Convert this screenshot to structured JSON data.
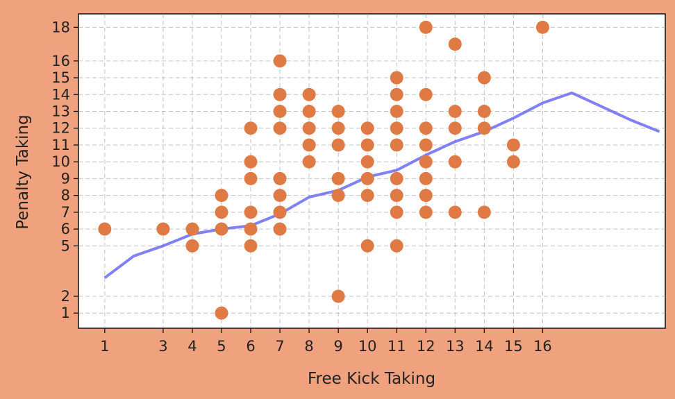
{
  "chart_data": {
    "type": "scatter",
    "title": "",
    "xlabel": "Free Kick Taking",
    "ylabel": "Penalty Taking",
    "xlim": [
      0.1,
      20.2
    ],
    "ylim": [
      0.1,
      18.8
    ],
    "x_ticks": [
      1,
      3,
      4,
      5,
      6,
      7,
      8,
      9,
      10,
      11,
      12,
      13,
      14,
      15,
      16
    ],
    "y_ticks": [
      1,
      2,
      5,
      6,
      7,
      8,
      9,
      10,
      11,
      12,
      13,
      14,
      15,
      16,
      18
    ],
    "grid": true,
    "colors": {
      "background": "#f0a27e",
      "plot_area": "#ffffff",
      "points": "#e07a45",
      "trend_line": "#6b6bf5"
    },
    "series": [
      {
        "type": "scatter",
        "points": [
          [
            1,
            6
          ],
          [
            3,
            6
          ],
          [
            4,
            6
          ],
          [
            4,
            5
          ],
          [
            5,
            8
          ],
          [
            5,
            7
          ],
          [
            5,
            6
          ],
          [
            5,
            1
          ],
          [
            6,
            12
          ],
          [
            6,
            10
          ],
          [
            6,
            9
          ],
          [
            6,
            7
          ],
          [
            6,
            6
          ],
          [
            6,
            5
          ],
          [
            7,
            16
          ],
          [
            7,
            14
          ],
          [
            7,
            13
          ],
          [
            7,
            12
          ],
          [
            7,
            9
          ],
          [
            7,
            8
          ],
          [
            7,
            7
          ],
          [
            7,
            6
          ],
          [
            8,
            14
          ],
          [
            8,
            13
          ],
          [
            8,
            12
          ],
          [
            8,
            11
          ],
          [
            8,
            10
          ],
          [
            9,
            13
          ],
          [
            9,
            12
          ],
          [
            9,
            11
          ],
          [
            9,
            9
          ],
          [
            9,
            8
          ],
          [
            9,
            2
          ],
          [
            10,
            12
          ],
          [
            10,
            11
          ],
          [
            10,
            10
          ],
          [
            10,
            9
          ],
          [
            10,
            8
          ],
          [
            10,
            5
          ],
          [
            11,
            15
          ],
          [
            11,
            14
          ],
          [
            11,
            13
          ],
          [
            11,
            12
          ],
          [
            11,
            11
          ],
          [
            11,
            9
          ],
          [
            11,
            8
          ],
          [
            11,
            7
          ],
          [
            11,
            5
          ],
          [
            12,
            18
          ],
          [
            12,
            14
          ],
          [
            12,
            12
          ],
          [
            12,
            11
          ],
          [
            12,
            10
          ],
          [
            12,
            9
          ],
          [
            12,
            8
          ],
          [
            12,
            7
          ],
          [
            13,
            17
          ],
          [
            13,
            13
          ],
          [
            13,
            12
          ],
          [
            13,
            10
          ],
          [
            13,
            7
          ],
          [
            14,
            15
          ],
          [
            14,
            13
          ],
          [
            14,
            12
          ],
          [
            14,
            7
          ],
          [
            15,
            11
          ],
          [
            15,
            10
          ],
          [
            16,
            18
          ]
        ]
      },
      {
        "type": "line",
        "x": [
          1,
          2,
          3,
          4,
          5,
          6,
          7,
          8,
          9,
          10,
          11,
          12,
          13,
          14,
          15,
          16,
          17,
          18,
          19,
          20
        ],
        "y": [
          3.1,
          4.4,
          5.0,
          5.7,
          6.0,
          6.2,
          6.9,
          7.9,
          8.3,
          9.1,
          9.5,
          10.4,
          11.2,
          11.8,
          12.6,
          13.5,
          14.1,
          13.3,
          12.5,
          11.8
        ]
      }
    ]
  }
}
